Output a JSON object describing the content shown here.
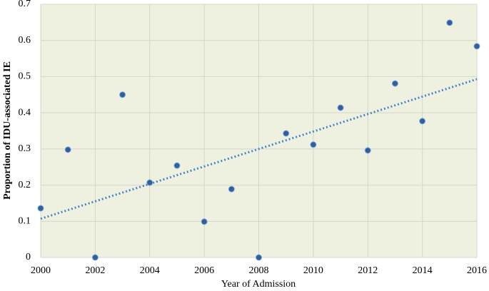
{
  "chart_data": {
    "type": "scatter",
    "x_label": "Year of Admission",
    "y_label": "Proportion of IDU-associated IE",
    "x": [
      2000,
      2001,
      2002,
      2003,
      2004,
      2005,
      2006,
      2007,
      2008,
      2009,
      2010,
      2011,
      2012,
      2013,
      2014,
      2015,
      2016
    ],
    "values": [
      0.136,
      0.298,
      0,
      0.45,
      0.207,
      0.254,
      0.099,
      0.189,
      0,
      0.343,
      0.312,
      0.414,
      0.296,
      0.481,
      0.377,
      0.649,
      0.584
    ],
    "color": "#2f5f9c",
    "trendline": {
      "x": [
        2000,
        2016
      ],
      "values": [
        0.107,
        0.493
      ],
      "color": "#4a86c8"
    },
    "xlim": [
      2000,
      2016
    ],
    "xticks": [
      2000,
      2002,
      2004,
      2006,
      2008,
      2010,
      2012,
      2014,
      2016
    ],
    "ylim": [
      0,
      0.7
    ],
    "yticks": [
      0,
      0.1,
      0.2,
      0.3,
      0.4,
      0.5,
      0.6,
      0.7
    ],
    "grid": true
  }
}
